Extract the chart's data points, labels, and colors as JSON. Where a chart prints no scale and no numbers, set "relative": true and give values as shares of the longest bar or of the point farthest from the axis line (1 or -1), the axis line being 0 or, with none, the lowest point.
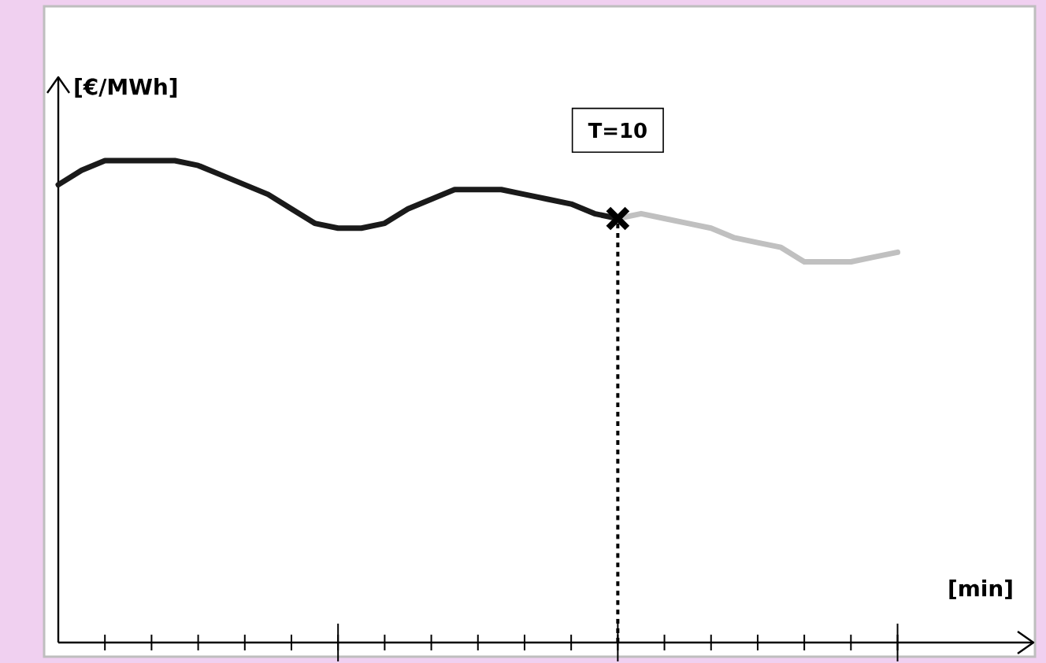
{
  "chart_data": {
    "type": "line",
    "relative": true,
    "xlabel": "[min]",
    "ylabel": "[€/MWh]",
    "categories": [
      null,
      null,
      null,
      null,
      null,
      null,
      null,
      null,
      null,
      null,
      null,
      null,
      null,
      null,
      null,
      null,
      null,
      null,
      null,
      null,
      null,
      null,
      null,
      null,
      null,
      null,
      null,
      null,
      null,
      null,
      null,
      null,
      null,
      null,
      null,
      null,
      null
    ],
    "series": [
      {
        "color": "#1a1a1a",
        "values": [
          0.95,
          0.98,
          1.0,
          1.0,
          1.0,
          1.0,
          0.99,
          0.97,
          0.95,
          0.93,
          0.9,
          0.87,
          0.86,
          0.86,
          0.87,
          0.9,
          0.92,
          0.94,
          0.94,
          0.94,
          0.93,
          0.92,
          0.91,
          0.89,
          0.88,
          null,
          null,
          null,
          null,
          null,
          null,
          null,
          null,
          null,
          null,
          null,
          null
        ]
      },
      {
        "color": "#c0c0c0",
        "values": [
          null,
          null,
          null,
          null,
          null,
          null,
          null,
          null,
          null,
          null,
          null,
          null,
          null,
          null,
          null,
          null,
          null,
          null,
          null,
          null,
          null,
          null,
          null,
          null,
          0.88,
          0.89,
          0.88,
          0.87,
          0.86,
          0.84,
          0.83,
          0.82,
          0.79,
          0.79,
          0.79,
          0.8,
          0.81
        ]
      }
    ],
    "annotations": [
      "T=10"
    ],
    "grid": false,
    "line_style": "solid",
    "marker": "none"
  }
}
